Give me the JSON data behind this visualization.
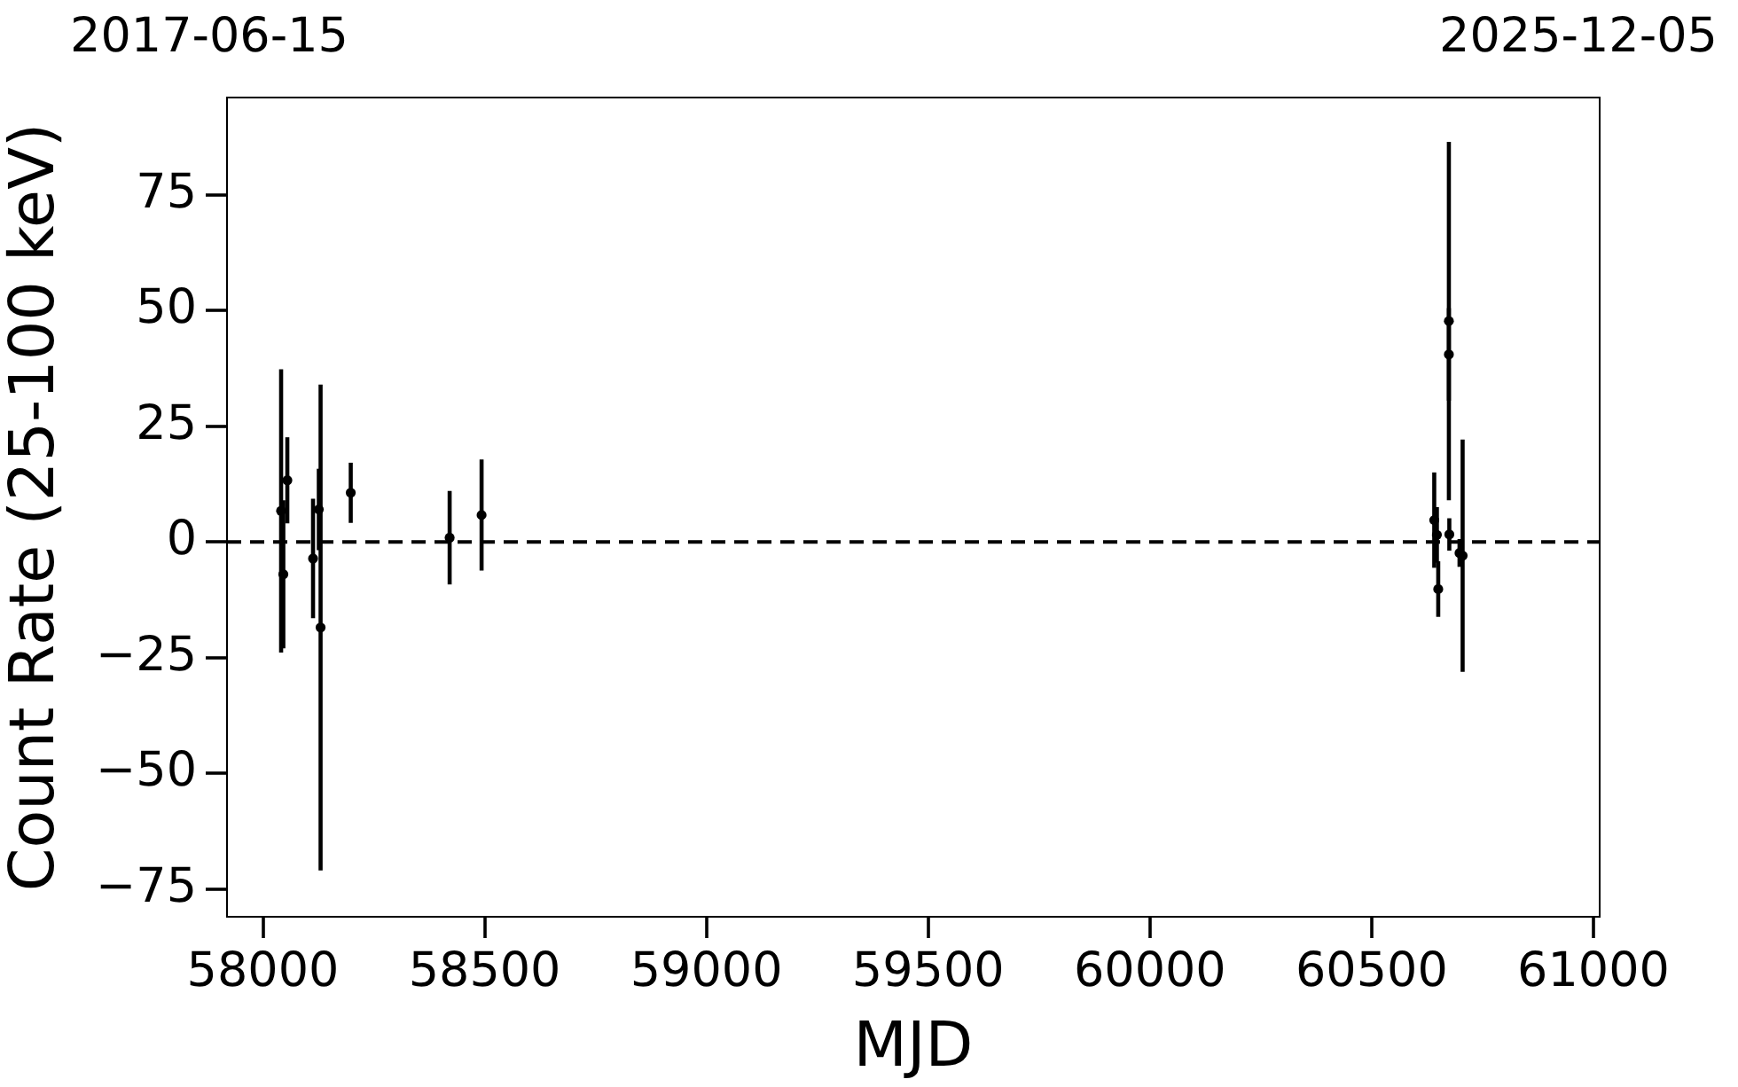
{
  "chart_data": {
    "type": "scatter",
    "xlabel": "MJD",
    "ylabel": "Count Rate (25-100 keV)",
    "annotations": [
      "2017-06-15",
      "2025-12-05"
    ],
    "x": [
      58041,
      58046,
      58055,
      58113,
      58126,
      58130,
      58198,
      58421,
      58493,
      60641,
      60647,
      60650,
      60674,
      60674,
      60675,
      60698,
      60705
    ],
    "values": [
      6.7,
      -7.0,
      13.3,
      -3.6,
      7.0,
      -18.5,
      10.6,
      0.9,
      5.8,
      4.7,
      1.5,
      -10.2,
      47.7,
      40.5,
      1.6,
      -2.4,
      -3.0
    ],
    "errors": [
      30.6,
      16,
      9.3,
      12.9,
      8.8,
      52.5,
      6.5,
      10.1,
      12,
      10.3,
      6,
      6,
      38.7,
      10,
      3.5,
      3,
      25.1
    ],
    "color": "#000000",
    "marker": "circle",
    "xlim": [
      57919,
      61014
    ],
    "xticks": [
      58000,
      58500,
      59000,
      59500,
      60000,
      60500,
      61000
    ],
    "ylim": [
      -81,
      96
    ],
    "yticks": [
      -75,
      -50,
      -25,
      0,
      25,
      50,
      75
    ],
    "ref_lines": [
      {
        "axis": "y",
        "value": 0,
        "color": "#000000",
        "line_style": "dashed"
      }
    ]
  }
}
